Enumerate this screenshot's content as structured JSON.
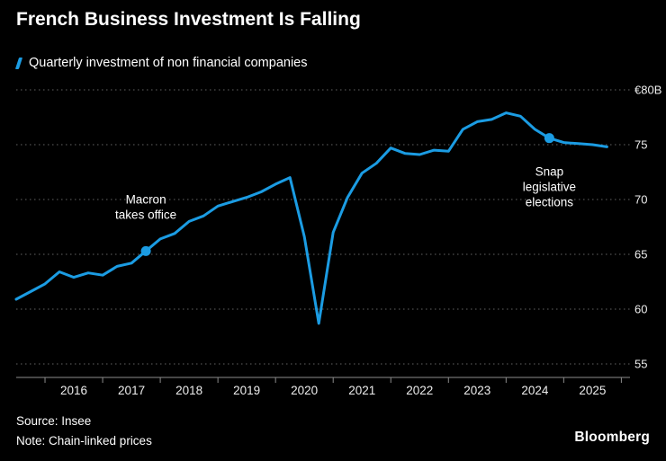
{
  "header": {
    "title": "French Business Investment Is Falling",
    "legend_label": "Quarterly investment of non financial companies"
  },
  "footer": {
    "source": "Source: Insee",
    "note": "Note: Chain-linked prices",
    "brand": "Bloomberg"
  },
  "colors": {
    "background": "#000000",
    "accent_blue": "#1b9ce3",
    "grid": "#515151",
    "axis": "#8c8c8c",
    "text": "#ffffff",
    "tick_label": "#ededed"
  },
  "chart_data": {
    "type": "line",
    "title": "French Business Investment Is Falling",
    "series_name": "Quarterly investment of non financial companies",
    "unit": "EUR billions",
    "grid": "dotted horizontal",
    "legend_position": "top-left",
    "xlim": [
      2015.0,
      2025.65
    ],
    "ylim": [
      55,
      80
    ],
    "y_ticks": [
      55,
      60,
      65,
      70,
      75,
      80
    ],
    "y_top_label": "€80B",
    "x_tick_years": [
      2016,
      2017,
      2018,
      2019,
      2020,
      2021,
      2022,
      2023,
      2024,
      2025
    ],
    "x": [
      2015.0,
      2015.25,
      2015.5,
      2015.75,
      2016.0,
      2016.25,
      2016.5,
      2016.75,
      2017.0,
      2017.25,
      2017.5,
      2017.75,
      2018.0,
      2018.25,
      2018.5,
      2018.75,
      2019.0,
      2019.25,
      2019.5,
      2019.75,
      2020.0,
      2020.25,
      2020.5,
      2020.75,
      2021.0,
      2021.25,
      2021.5,
      2021.75,
      2022.0,
      2022.25,
      2022.5,
      2022.75,
      2023.0,
      2023.25,
      2023.5,
      2023.75,
      2024.0,
      2024.25,
      2024.5,
      2024.75,
      2025.0,
      2025.25
    ],
    "values": [
      60.9,
      61.6,
      62.3,
      63.4,
      62.9,
      63.3,
      63.1,
      63.9,
      64.2,
      65.3,
      66.4,
      66.9,
      68.0,
      68.5,
      69.4,
      69.8,
      70.2,
      70.7,
      71.4,
      72.0,
      66.6,
      58.7,
      67.0,
      70.2,
      72.4,
      73.3,
      74.7,
      74.2,
      74.1,
      74.5,
      74.4,
      76.4,
      77.1,
      77.3,
      77.9,
      77.6,
      76.4,
      75.6,
      75.2,
      75.1,
      75.0,
      74.8
    ],
    "annotations": [
      {
        "lines": [
          "Macron",
          "takes office"
        ],
        "x": 2017.25,
        "value": 65.3,
        "position": "above",
        "name": "macron-takes-office"
      },
      {
        "lines": [
          "Snap",
          "legislative",
          "elections"
        ],
        "x": 2024.25,
        "value": 75.6,
        "position": "below",
        "name": "snap-legislative-elections"
      }
    ]
  }
}
